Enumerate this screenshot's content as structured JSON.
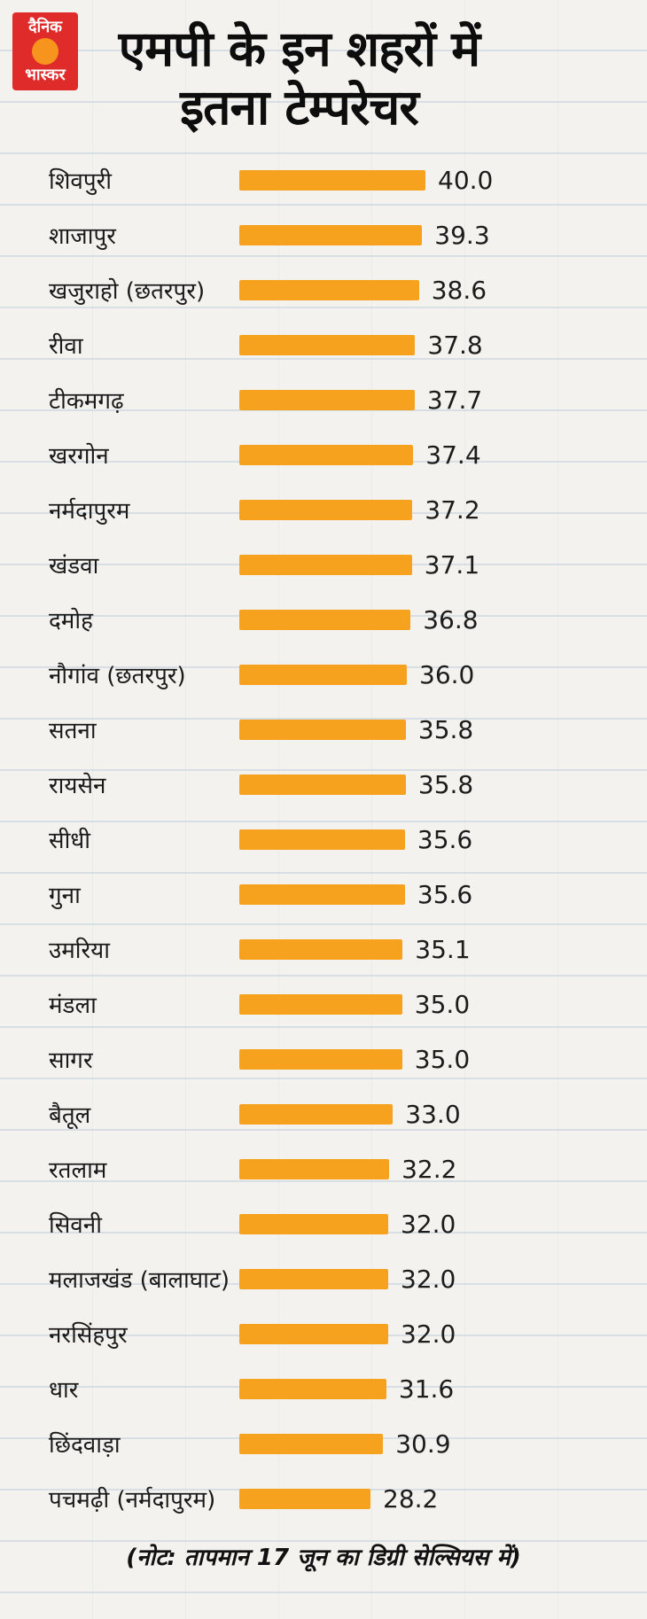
{
  "logo": {
    "line1": "दैनिक",
    "line2": "भास्कर"
  },
  "header": {
    "title_line1": "एमपी के इन शहरों में",
    "title_line2": "इतना टेम्परेचर"
  },
  "footer": {
    "note_label": "(नोट:",
    "note_text": " तापमान 17 जून का डिग्री सेल्सियस में)"
  },
  "chart_data": {
    "type": "bar",
    "orientation": "horizontal",
    "title": "एमपी के इन शहरों में इतना टेम्परेचर",
    "note": "तापमान 17 जून का डिग्री सेल्सियस में",
    "bar_color": "#f6a21e",
    "xlim": [
      0,
      40
    ],
    "unit": "डिग्री सेल्सियस",
    "categories": [
      "शिवपुरी",
      "शाजापुर",
      "खजुराहो (छतरपुर)",
      "रीवा",
      "टीकमगढ़",
      "खरगोन",
      "नर्मदापुरम",
      "खंडवा",
      "दमोह",
      "नौगांव (छतरपुर)",
      "सतना",
      "रायसेन",
      "सीधी",
      "गुना",
      "उमरिया",
      "मंडला",
      "सागर",
      "बैतूल",
      "रतलाम",
      "सिवनी",
      "मलाजखंड (बालाघाट)",
      "नरसिंहपुर",
      "धार",
      "छिंदवाड़ा",
      "पचमढ़ी (नर्मदापुरम)"
    ],
    "values": [
      40.0,
      39.3,
      38.6,
      37.8,
      37.7,
      37.4,
      37.2,
      37.1,
      36.8,
      36.0,
      35.8,
      35.8,
      35.6,
      35.6,
      35.1,
      35.0,
      35.0,
      33.0,
      32.2,
      32.0,
      32.0,
      32.0,
      31.6,
      30.9,
      28.2
    ],
    "value_labels": [
      "40.0",
      "39.3",
      "38.6",
      "37.8",
      "37.7",
      "37.4",
      "37.2",
      "37.1",
      "36.8",
      "36.0",
      "35.8",
      "35.8",
      "35.6",
      "35.6",
      "35.1",
      "35.0",
      "35.0",
      "33.0",
      "32.2",
      "32.0",
      "32.0",
      "32.0",
      "31.6",
      "30.9",
      "28.2"
    ]
  }
}
